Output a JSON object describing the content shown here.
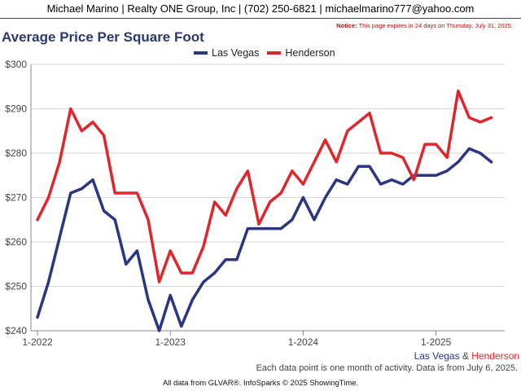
{
  "header": {
    "contact": "Michael Marino | Realty ONE Group, Inc | (702) 250-6821 | michaelmarino777@yahoo.com",
    "notice_label": "Notice:",
    "notice_text": "This page expires in 24 days on Thursday, July 31, 2025."
  },
  "footer": {
    "note": "Each data point is one month of activity. Data is from July 6, 2025.",
    "source": "All data from GLVAR®. InfoSparks © 2025 ShowingTime.",
    "corner_series_1": "Las Vegas",
    "corner_amp": " & ",
    "corner_series_2": "Henderson"
  },
  "chart_data": {
    "type": "line",
    "title": "Average Price Per Square Foot",
    "xlabel": "",
    "ylabel": "",
    "ylim": [
      240,
      300
    ],
    "y_ticks": [
      "$240",
      "$250",
      "$260",
      "$270",
      "$280",
      "$290",
      "$300"
    ],
    "y_tick_values": [
      240,
      250,
      260,
      270,
      280,
      290,
      300
    ],
    "x_ticks": [
      {
        "label": "1-2022",
        "index": 0
      },
      {
        "label": "1-2023",
        "index": 12
      },
      {
        "label": "1-2024",
        "index": 24
      },
      {
        "label": "1-2025",
        "index": 36
      }
    ],
    "x_start": "2022-01",
    "x_end": "2025-06",
    "legend_position": "top-center",
    "grid": "horizontal",
    "series": [
      {
        "name": "Las Vegas",
        "color": "#2b3580",
        "values": [
          243,
          251,
          261,
          271,
          272,
          274,
          267,
          265,
          255,
          258,
          247,
          240,
          248,
          241,
          247,
          251,
          253,
          256,
          256,
          263,
          263,
          263,
          263,
          265,
          270,
          265,
          270,
          274,
          273,
          277,
          277,
          273,
          274,
          273,
          275,
          275,
          275,
          276,
          278,
          281,
          280,
          278
        ]
      },
      {
        "name": "Henderson",
        "color": "#e0262d",
        "values": [
          265,
          270,
          278,
          290,
          285,
          287,
          284,
          271,
          271,
          271,
          265,
          251,
          258,
          253,
          253,
          259,
          269,
          266,
          272,
          276,
          264,
          269,
          271,
          276,
          273,
          278,
          283,
          278,
          285,
          287,
          289,
          280,
          280,
          279,
          274,
          282,
          282,
          279,
          294,
          288,
          287,
          288
        ]
      }
    ]
  }
}
